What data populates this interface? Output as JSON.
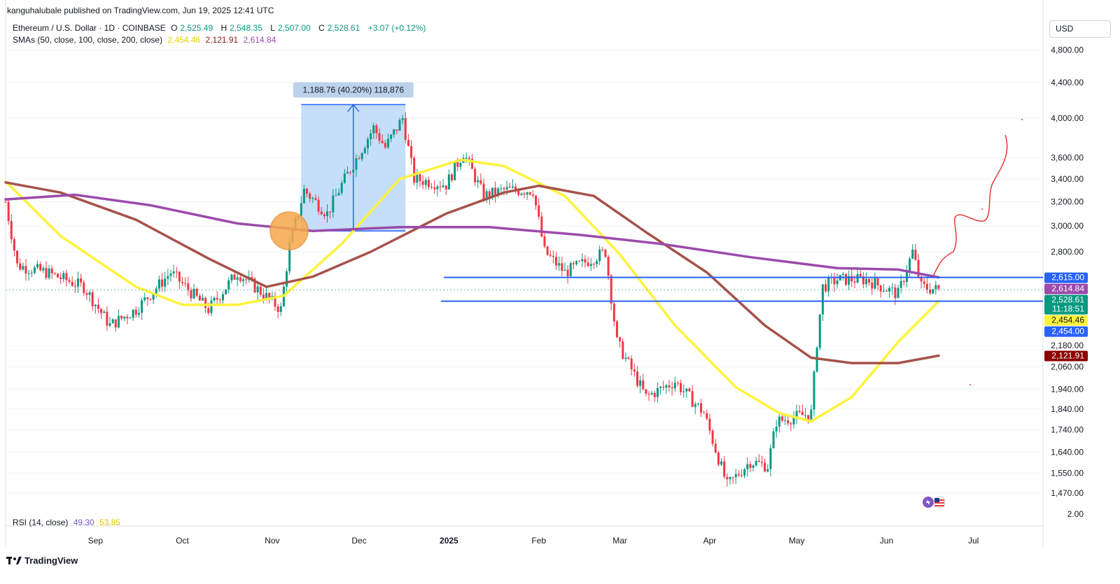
{
  "publisher": "kanguhalubale published on TradingView.com, Jun 19, 2025 12:41 UTC",
  "symbol_title": "Ethereum / U.S. Dollar · 1D · COINBASE",
  "ohlc": {
    "open_label": "O",
    "open": "2,525.49",
    "high_label": "H",
    "high": "2,548.35",
    "low_label": "L",
    "low": "2,507.00",
    "close_label": "C",
    "close": "2,528.61",
    "change": "+3.07 (+0.12%)"
  },
  "sma_legend": {
    "label": "SMAs (50, close, 100, close, 200, close)",
    "sma50": "2,454.46",
    "sma100": "2,121.91",
    "sma200": "2,614.84"
  },
  "rsi_legend": {
    "label": "RSI (14, close)",
    "v1": "49.30",
    "v2": "53.85"
  },
  "currency_button": "USD",
  "brand": "TradingView",
  "colors": {
    "up": "#089981",
    "down": "#f23645",
    "sma50": "#fff23b",
    "sma100": "#a5524a",
    "sma200": "#9c4bab",
    "level_line": "#2962ff",
    "measure_fill": "#bbd8f8",
    "circle": "#f7a84b",
    "drawing": "#e53935"
  },
  "chart_data": {
    "type": "line",
    "title": "Ethereum / U.S. Dollar · 1D · COINBASE",
    "y_scale": "log",
    "ylim": [
      1400,
      4900
    ],
    "y_ticks": [
      "4,800.00",
      "4,400.00",
      "4,000.00",
      "3,600.00",
      "3,400.00",
      "3,200.00",
      "3,000.00",
      "2,800.00",
      "2,180.00",
      "2,060.00",
      "1,940.00",
      "1,840.00",
      "1,740.00",
      "1,640.00",
      "1,550.00",
      "1,470.00"
    ],
    "rsi_tick": "2.00",
    "x_ticks": [
      "Sep",
      "Oct",
      "Nov",
      "Dec",
      "2025",
      "Feb",
      "Mar",
      "Apr",
      "May",
      "Jun",
      "Jul"
    ],
    "x_range": [
      "2024-08-01",
      "2025-07-25"
    ],
    "series": [
      {
        "name": "ETH/USD",
        "color": "#089981",
        "x": [
          "2024-08-01",
          "2024-08-05",
          "2024-08-15",
          "2024-08-28",
          "2024-09-06",
          "2024-09-15",
          "2024-09-27",
          "2024-10-10",
          "2024-10-20",
          "2024-10-29",
          "2024-11-04",
          "2024-11-07",
          "2024-11-12",
          "2024-11-20",
          "2024-11-25",
          "2024-12-06",
          "2024-12-10",
          "2024-12-16",
          "2024-12-20",
          "2024-12-31",
          "2025-01-06",
          "2025-01-13",
          "2025-01-20",
          "2025-01-30",
          "2025-02-03",
          "2025-02-10",
          "2025-02-24",
          "2025-02-28",
          "2025-03-10",
          "2025-03-20",
          "2025-03-30",
          "2025-04-07",
          "2025-04-15",
          "2025-04-21",
          "2025-04-24",
          "2025-05-06",
          "2025-05-08",
          "2025-05-10",
          "2025-05-15",
          "2025-05-25",
          "2025-06-05",
          "2025-06-10",
          "2025-06-13",
          "2025-06-19"
        ],
        "y": [
          3200,
          2700,
          2650,
          2550,
          2300,
          2400,
          2650,
          2400,
          2650,
          2500,
          2400,
          2850,
          3300,
          3100,
          3350,
          3900,
          3700,
          4000,
          3400,
          3350,
          3650,
          3250,
          3300,
          3300,
          2800,
          2650,
          2800,
          2200,
          1900,
          1980,
          1820,
          1500,
          1600,
          1580,
          1780,
          1820,
          2200,
          2550,
          2600,
          2600,
          2500,
          2800,
          2550,
          2528.61
        ]
      },
      {
        "name": "SMA 50",
        "color": "#fff23b",
        "x": [
          "2024-08-01",
          "2024-08-20",
          "2024-09-15",
          "2024-10-01",
          "2024-10-20",
          "2024-11-05",
          "2024-11-25",
          "2024-12-15",
          "2025-01-05",
          "2025-01-20",
          "2025-02-10",
          "2025-03-01",
          "2025-03-20",
          "2025-04-10",
          "2025-04-25",
          "2025-05-06",
          "2025-05-20",
          "2025-06-05",
          "2025-06-19"
        ],
        "y": [
          3380,
          2920,
          2550,
          2430,
          2430,
          2490,
          2860,
          3400,
          3580,
          3520,
          3250,
          2780,
          2300,
          1950,
          1820,
          1780,
          1900,
          2200,
          2454.46
        ]
      },
      {
        "name": "SMA 100",
        "color": "#a5524a",
        "x": [
          "2024-08-01",
          "2024-08-20",
          "2024-09-15",
          "2024-10-10",
          "2024-10-30",
          "2024-11-15",
          "2024-12-05",
          "2024-12-31",
          "2025-01-20",
          "2025-02-01",
          "2025-02-20",
          "2025-03-10",
          "2025-03-31",
          "2025-04-20",
          "2025-05-06",
          "2025-05-20",
          "2025-06-05",
          "2025-06-19"
        ],
        "y": [
          3370,
          3280,
          3050,
          2750,
          2550,
          2620,
          2800,
          3100,
          3280,
          3340,
          3250,
          2950,
          2650,
          2300,
          2110,
          2080,
          2080,
          2121.91
        ]
      },
      {
        "name": "SMA 200",
        "color": "#9c4bab",
        "x": [
          "2024-08-01",
          "2024-08-25",
          "2024-09-20",
          "2024-10-20",
          "2024-11-15",
          "2024-12-15",
          "2025-01-15",
          "2025-02-15",
          "2025-03-15",
          "2025-04-15",
          "2025-05-15",
          "2025-06-05",
          "2025-06-19"
        ],
        "y": [
          3220,
          3260,
          3170,
          3020,
          2960,
          2990,
          2990,
          2930,
          2860,
          2760,
          2680,
          2670,
          2614.84
        ]
      }
    ],
    "horizontal_levels": [
      2615.0,
      2454.0
    ],
    "measure_box": {
      "from": "2024-11-11",
      "to": "2024-12-17",
      "low": 2960,
      "high": 4148,
      "label": "1,188.76 (40.20%) 118,876"
    },
    "price_labels": [
      {
        "text": "2,615.00",
        "value": 2615.0,
        "color": "#2962ff"
      },
      {
        "text": "2,614.84",
        "value": 2614.84,
        "color": "#9c4bab"
      },
      {
        "text": "2,528.61",
        "value": 2528.61,
        "color": "#089981",
        "sub": "11:18:51"
      },
      {
        "text": "2,454.46",
        "value": 2454.46,
        "color": "#fff23b",
        "textColor": "#131722"
      },
      {
        "text": "2,454.00",
        "value": 2454.0,
        "color": "#2962ff"
      },
      {
        "text": "2,121.91",
        "value": 2121.91,
        "color": "#8b0000"
      }
    ]
  }
}
